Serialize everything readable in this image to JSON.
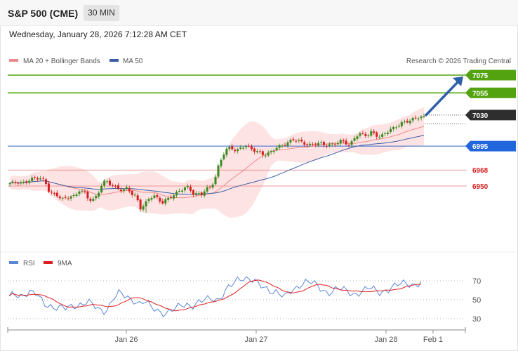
{
  "header": {
    "title": "S&P 500 (CME)",
    "timeframe": "30 MIN"
  },
  "datetime": "Wednesday, January 28, 2026 7:12:28 AM CET",
  "legend": {
    "bollinger": "MA 20 + Bollinger Bands",
    "ma50": "MA 50",
    "copyright": "Research © 2026 Trading Central"
  },
  "rsi_legend": {
    "rsi": "RSI",
    "ma9": "9MA"
  },
  "colors": {
    "bullish": "#3b8a1f",
    "bearish": "#d81f1f",
    "support": "#3366cc",
    "resistance_green": "#52a30f",
    "current": "#333333",
    "bollinger": "#f08a8a",
    "ma50": "#3a5fa8",
    "rsi": "#5b86d6",
    "rsi_ma": "#e02020",
    "arrow": "#2f5fa6"
  },
  "chart_data": [
    {
      "type": "candlestick",
      "title": "S&P 500 (CME)",
      "timeframe": "30 MIN",
      "x_ticks": [
        "Jan 26",
        "Jan 27",
        "Jan 28",
        "Feb 1"
      ],
      "ylim": [
        6915,
        7085
      ],
      "price_levels": [
        {
          "value": 7075,
          "label": "7075",
          "kind": "resistance"
        },
        {
          "value": 7055,
          "label": "7055",
          "kind": "resistance"
        },
        {
          "value": 7030,
          "label": "7030",
          "kind": "current"
        },
        {
          "value": 6995,
          "label": "6995",
          "kind": "support"
        },
        {
          "value": 6968,
          "label": "6968",
          "kind": "pivot"
        },
        {
          "value": 6950,
          "label": "6950",
          "kind": "pivot"
        }
      ],
      "close_path": [
        6952,
        6953,
        6955,
        6954,
        6956,
        6957,
        6958,
        6959,
        6957,
        6945,
        6940,
        6938,
        6935,
        6937,
        6940,
        6938,
        6945,
        6942,
        6936,
        6935,
        6940,
        6950,
        6955,
        6952,
        6950,
        6948,
        6945,
        6947,
        6940,
        6938,
        6926,
        6930,
        6936,
        6938,
        6935,
        6932,
        6936,
        6938,
        6940,
        6944,
        6948,
        6950,
        6942,
        6940,
        6940,
        6946,
        6950,
        6958,
        6975,
        6985,
        6992,
        6993,
        6990,
        6994,
        6995,
        6992,
        6990,
        6989,
        6987,
        6985,
        6988,
        6992,
        6995,
        6998,
        7000,
        7002,
        7000,
        6999,
        6998,
        6997,
        6998,
        6997,
        6996,
        6996,
        6998,
        6999,
        7000,
        6998,
        6995,
        7005,
        7010,
        7008,
        7006,
        7010,
        7008,
        7006,
        7010,
        7012,
        7014,
        7018,
        7022,
        7024,
        7024,
        7025,
        7027,
        7028
      ],
      "lows": [
        {
          "index": 31,
          "value": 6920
        }
      ],
      "forecast_arrow": {
        "from": 7030,
        "to": 7075
      },
      "series": [
        {
          "name": "MA 20 + Bollinger Bands"
        },
        {
          "name": "MA 50"
        }
      ]
    },
    {
      "type": "line",
      "title": "RSI",
      "y_ticks": [
        70,
        50,
        30
      ],
      "ylim": [
        20,
        80
      ],
      "rsi": [
        52,
        56,
        54,
        57,
        58,
        56,
        50,
        45,
        44,
        42,
        41,
        40,
        43,
        45,
        46,
        48,
        44,
        40,
        38,
        42,
        52,
        56,
        54,
        52,
        50,
        46,
        48,
        42,
        40,
        38,
        36,
        38,
        40,
        44,
        46,
        44,
        46,
        48,
        50,
        52,
        50,
        56,
        62,
        66,
        72,
        74,
        73,
        70,
        64,
        62,
        60,
        60,
        56,
        52,
        58,
        62,
        68,
        70,
        68,
        64,
        60,
        58,
        60,
        62,
        60,
        58,
        56,
        58,
        60,
        62,
        60,
        58,
        60,
        62,
        64,
        66,
        68,
        67,
        66,
        68
      ],
      "series": [
        {
          "name": "RSI"
        },
        {
          "name": "9MA"
        }
      ]
    }
  ]
}
